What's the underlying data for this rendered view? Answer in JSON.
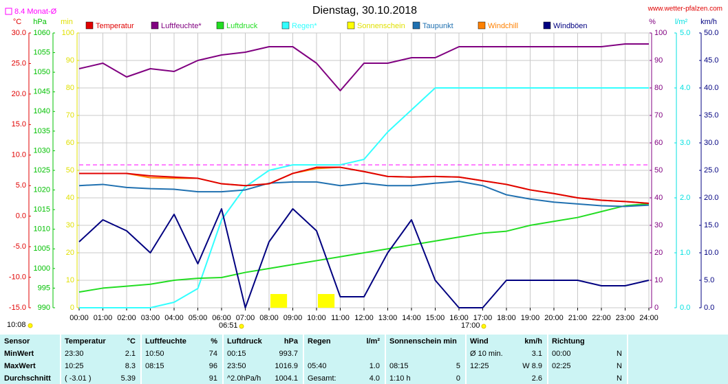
{
  "chart_data": {
    "type": "line",
    "title": "Dienstag, 30.10.2018",
    "source": "www.wetter-pfalzen.com",
    "reference": {
      "label": "8.4 Monat-Ø",
      "value": 8.4,
      "axis": 0,
      "color": "#ff00ff"
    },
    "update_time": "10:08",
    "sunrise": "06:51",
    "sunset": "17:00",
    "grid": true,
    "grid_axis": 3,
    "x": [
      0,
      1,
      2,
      3,
      4,
      5,
      6,
      7,
      8,
      9,
      10,
      11,
      12,
      13,
      14,
      15,
      16,
      17,
      18,
      19,
      20,
      21,
      22,
      23,
      24
    ],
    "xlim": [
      0,
      24
    ],
    "xticks": [
      {
        "value": 0,
        "label": "00:00"
      },
      {
        "value": 1,
        "label": "01:00"
      },
      {
        "value": 2,
        "label": "02:00"
      },
      {
        "value": 3,
        "label": "03:00"
      },
      {
        "value": 4,
        "label": "04:00"
      },
      {
        "value": 5,
        "label": "05:00"
      },
      {
        "value": 6,
        "label": "06:00"
      },
      {
        "value": 7,
        "label": "07:00"
      },
      {
        "value": 8,
        "label": "08:00"
      },
      {
        "value": 9,
        "label": "09:00"
      },
      {
        "value": 10,
        "label": "10:00"
      },
      {
        "value": 11,
        "label": "11:00"
      },
      {
        "value": 12,
        "label": "12:00"
      },
      {
        "value": 13,
        "label": "13:00"
      },
      {
        "value": 14,
        "label": "14:00"
      },
      {
        "value": 15,
        "label": "15:00"
      },
      {
        "value": 16,
        "label": "16:00"
      },
      {
        "value": 17,
        "label": "17:00"
      },
      {
        "value": 18,
        "label": "18:00"
      },
      {
        "value": 19,
        "label": "19:00"
      },
      {
        "value": 20,
        "label": "20:00"
      },
      {
        "value": 21,
        "label": "21:00"
      },
      {
        "value": 22,
        "label": "22:00"
      },
      {
        "value": 23,
        "label": "23:00"
      },
      {
        "value": 24,
        "label": "24:00"
      }
    ],
    "axes": [
      {
        "label": "°C",
        "color": "#e00000",
        "lim": [
          -15,
          30
        ],
        "ticks": [
          {
            "value": -15,
            "label": "-15.0"
          },
          {
            "value": -10,
            "label": "-10.0"
          },
          {
            "value": -5,
            "label": "-5.0"
          },
          {
            "value": 0,
            "label": "0.0"
          },
          {
            "value": 5,
            "label": "5.0"
          },
          {
            "value": 10,
            "label": "10.0"
          },
          {
            "value": 15,
            "label": "15.0"
          },
          {
            "value": 20,
            "label": "20.0"
          },
          {
            "value": 25,
            "label": "25.0"
          },
          {
            "value": 30,
            "label": "30.0"
          }
        ]
      },
      {
        "label": "hPa",
        "color": "#00c000",
        "lim": [
          990,
          1060
        ],
        "ticks": [
          990,
          995,
          1000,
          1005,
          1010,
          1015,
          1020,
          1025,
          1030,
          1035,
          1040,
          1045,
          1050,
          1055,
          1060
        ]
      },
      {
        "label": "min",
        "color": "#e0e000",
        "lim": [
          0,
          100
        ],
        "ticks": [
          0,
          10,
          20,
          30,
          40,
          50,
          60,
          70,
          80,
          90,
          100
        ]
      },
      {
        "label": "%",
        "color": "#800080",
        "lim": [
          0,
          100
        ],
        "ticks": [
          0,
          10,
          20,
          30,
          40,
          50,
          60,
          70,
          80,
          90,
          100
        ]
      },
      {
        "label": "l/m²",
        "color": "#00e0e0",
        "lim": [
          0,
          5
        ],
        "ticks": [
          {
            "value": 0,
            "label": "0.0"
          },
          {
            "value": 1,
            "label": "1.0"
          },
          {
            "value": 2,
            "label": "2.0"
          },
          {
            "value": 3,
            "label": "3.0"
          },
          {
            "value": 4,
            "label": "4.0"
          },
          {
            "value": 5,
            "label": "5.0"
          }
        ]
      },
      {
        "label": "km/h",
        "color": "#000080",
        "lim": [
          0,
          50
        ],
        "ticks": [
          {
            "value": 0,
            "label": "0.0"
          },
          {
            "value": 5,
            "label": "5.0"
          },
          {
            "value": 10,
            "label": "10.0"
          },
          {
            "value": 15,
            "label": "15.0"
          },
          {
            "value": 20,
            "label": "20.0"
          },
          {
            "value": 25,
            "label": "25.0"
          },
          {
            "value": 30,
            "label": "30.0"
          },
          {
            "value": 35,
            "label": "35.0"
          },
          {
            "value": 40,
            "label": "40.0"
          },
          {
            "value": 45,
            "label": "45.0"
          },
          {
            "value": 50,
            "label": "50.0"
          }
        ]
      }
    ],
    "series": [
      {
        "name": "Temperatur",
        "color": "#e00000",
        "axis": 0,
        "values": [
          7.0,
          7.0,
          7.0,
          6.6,
          6.4,
          6.2,
          5.3,
          5.0,
          5.3,
          7.0,
          8.0,
          8.0,
          7.3,
          6.5,
          6.4,
          6.5,
          6.4,
          5.8,
          5.2,
          4.3,
          3.7,
          3.0,
          2.6,
          2.4,
          2.1
        ]
      },
      {
        "name": "Luftfeuchte*",
        "color": "#800080",
        "axis": 3,
        "values": [
          87,
          89,
          84,
          87,
          86,
          90,
          92,
          93,
          95,
          95,
          89,
          79,
          89,
          89,
          91,
          91,
          95,
          95,
          95,
          95,
          95,
          95,
          95,
          96,
          96
        ]
      },
      {
        "name": "Luftdruck",
        "color": "#22dd22",
        "axis": 1,
        "values": [
          994,
          995,
          995.5,
          996,
          997,
          997.5,
          997.7,
          999,
          1000,
          1001,
          1002,
          1003,
          1004,
          1005,
          1006,
          1007,
          1008,
          1009,
          1009.5,
          1011,
          1012,
          1013,
          1014.5,
          1016,
          1016.5
        ]
      },
      {
        "name": "Regen*",
        "color": "#33ffff",
        "axis": 4,
        "values": [
          0,
          0,
          0,
          0,
          0.1,
          0.35,
          1.6,
          2.2,
          2.5,
          2.6,
          2.6,
          2.6,
          2.7,
          3.2,
          3.6,
          4.0,
          4.0,
          4.0,
          4.0,
          4.0,
          4.0,
          4.0,
          4.0,
          4.0,
          4.0
        ]
      },
      {
        "name": "Sonnenschein",
        "color": "#ffff00",
        "axis": 2,
        "kind": "bar",
        "values": [
          0,
          0,
          0,
          0,
          0,
          0,
          0,
          0,
          5,
          0,
          5,
          0,
          0,
          0,
          0,
          0,
          0,
          0,
          0,
          0,
          0,
          0,
          0,
          0,
          0
        ]
      },
      {
        "name": "Taupunkt",
        "color": "#1f70b0",
        "axis": 0,
        "values": [
          5.0,
          5.2,
          4.7,
          4.5,
          4.4,
          4.0,
          4.0,
          4.3,
          5.4,
          5.6,
          5.6,
          5.0,
          5.4,
          5.0,
          5.0,
          5.4,
          5.7,
          5.0,
          3.5,
          2.8,
          2.3,
          2.0,
          1.7,
          1.6,
          1.8
        ]
      },
      {
        "name": "Windchill",
        "color": "#ff8000",
        "axis": 0,
        "values": [
          7.0,
          7.0,
          7.0,
          6.3,
          6.2,
          6.2,
          5.3,
          5.0,
          5.3,
          7.0,
          7.8,
          8.0,
          7.3,
          6.5,
          6.4,
          6.5,
          6.4,
          5.8,
          5.2,
          4.3,
          3.7,
          3.0,
          2.6,
          2.4,
          2.1
        ]
      },
      {
        "name": "Windböen",
        "color": "#000080",
        "axis": 5,
        "values": [
          12,
          16,
          14,
          10,
          17,
          8,
          18,
          0,
          12,
          18,
          14,
          2,
          2,
          10,
          16,
          5,
          0,
          0,
          5,
          5,
          5,
          5,
          4,
          4,
          5
        ]
      }
    ]
  },
  "table": {
    "header": [
      "Sensor",
      "Temperatur",
      "°C",
      "Luftfeuchte",
      "%",
      "Luftdruck",
      "hPa",
      "Regen",
      "l/m²",
      "Sonnenschein min",
      null,
      "Wind",
      "km/h",
      "Richtung",
      null
    ],
    "rows": [
      [
        "MinWert",
        "23:30",
        "2.1",
        "10:50",
        "74",
        "00:15",
        "993.7",
        null,
        null,
        null,
        null,
        "Ø 10 min.",
        "3.1",
        "00:00",
        "N"
      ],
      [
        "MaxWert",
        "10:25",
        "8.3",
        "08:15",
        "96",
        "23:50",
        "1016.9",
        "05:40",
        "1.0",
        "08:15",
        "5",
        "12:25",
        "W 8.9",
        "02:25",
        "N"
      ],
      [
        "Durchschnitt",
        "( -3.01 )",
        "5.39",
        null,
        "91",
        "^2.0hPa/h",
        "1004.1",
        "Gesamt:",
        "4.0",
        "1:10 h",
        "0",
        null,
        "2.6",
        null,
        "N"
      ]
    ]
  }
}
